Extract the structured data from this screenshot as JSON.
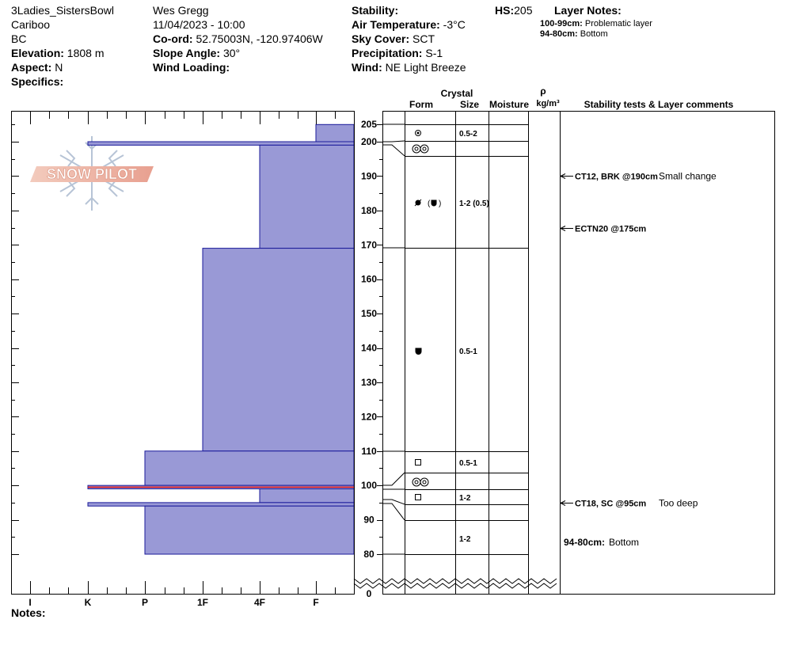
{
  "header": {
    "col1": {
      "location": "3Ladies_SistersBowl",
      "region": "Cariboo",
      "state": "BC",
      "elevation_label": "Elevation:",
      "elevation_value": "1808 m",
      "aspect_label": "Aspect:",
      "aspect_value": "N",
      "specifics_label": "Specifics:"
    },
    "col2": {
      "observer": "Wes Gregg",
      "datetime": "11/04/2023 - 10:00",
      "coord_label": "Co-ord:",
      "coord_value": "52.75003N, -120.97406W",
      "slope_label": "Slope Angle:",
      "slope_value": "30°",
      "wind_loading_label": "Wind Loading:"
    },
    "col3": {
      "stability_label": "Stability:",
      "air_temp_label": "Air Temperature:",
      "air_temp_value": "-3°C",
      "sky_label": "Sky Cover:",
      "sky_value": "SCT",
      "precip_label": "Precipitation:",
      "precip_value": "S-1",
      "wind_label": "Wind:",
      "wind_value": "NE Light Breeze"
    },
    "hs_label": "HS:",
    "hs_value": "205",
    "layer_notes_title": "Layer Notes:",
    "layer_notes": [
      {
        "range": "100-99cm:",
        "text": "Problematic layer"
      },
      {
        "range": "94-80cm:",
        "text": "Bottom"
      }
    ]
  },
  "columns": {
    "crystal": "Crystal",
    "form": "Form",
    "size": "Size",
    "moisture": "Moisture",
    "rho": "ρ",
    "density_unit": "kg/m³",
    "tests": "Stability tests & Layer comments"
  },
  "hardness_axis": [
    "I",
    "K",
    "P",
    "1F",
    "4F",
    "F"
  ],
  "depth_ticks": [
    205,
    200,
    190,
    180,
    170,
    160,
    150,
    140,
    130,
    120,
    110,
    100,
    90,
    80,
    0
  ],
  "logo_text": "SNOW PILOT",
  "notes_label": "Notes:",
  "colors": {
    "layer_fill": "#9999d6",
    "layer_stroke": "#1a1a9a",
    "problem_line": "#e01010",
    "logo": "#e8a090"
  },
  "chart_data": {
    "type": "snow_profile",
    "hs_cm": 205,
    "hardness_scale": [
      "F",
      "4F",
      "1F",
      "P",
      "K",
      "I"
    ],
    "layers": [
      {
        "top": 205,
        "bottom": 200,
        "hardness": "F"
      },
      {
        "top": 200,
        "bottom": 199,
        "hardness": "K"
      },
      {
        "top": 199,
        "bottom": 169,
        "hardness": "4F"
      },
      {
        "top": 169,
        "bottom": 110,
        "hardness": "1F"
      },
      {
        "top": 110,
        "bottom": 100,
        "hardness": "P"
      },
      {
        "top": 100,
        "bottom": 99,
        "hardness": "K",
        "problematic": true
      },
      {
        "top": 99,
        "bottom": 95,
        "hardness": "4F"
      },
      {
        "top": 95,
        "bottom": 94,
        "hardness": "K"
      },
      {
        "top": 94,
        "bottom": 80,
        "hardness": "P"
      }
    ],
    "crystal_layers": [
      {
        "top": 205,
        "bottom": 200,
        "form": "rounded-grains",
        "size": "0.5-2"
      },
      {
        "top": 200,
        "bottom": 196,
        "form": "melt-forms",
        "size": ""
      },
      {
        "top": 196,
        "bottom": 169,
        "form": "decomposing-faceted",
        "size": "1-2 (0.5)"
      },
      {
        "top": 169,
        "bottom": 110,
        "form": "faceted-rounded",
        "size": "0.5-1"
      },
      {
        "top": 110,
        "bottom": 104,
        "form": "faceted",
        "size": "0.5-1"
      },
      {
        "top": 104,
        "bottom": 99,
        "form": "melt-forms",
        "size": ""
      },
      {
        "top": 99,
        "bottom": 95,
        "form": "faceted",
        "size": "1-2"
      },
      {
        "top": 95,
        "bottom": 90,
        "form": "",
        "size": ""
      },
      {
        "top": 90,
        "bottom": 80,
        "form": "",
        "size": "1-2"
      }
    ],
    "tests": [
      {
        "depth": 190,
        "label": "CT12, BRK @190cm",
        "comment": "Small change"
      },
      {
        "depth": 175,
        "label": "ECTN20 @175cm",
        "comment": ""
      },
      {
        "depth": 95,
        "label": "CT18, SC @95cm",
        "comment": "Too deep"
      }
    ],
    "bottom_note": {
      "label": "94-80cm:",
      "text": "Bottom"
    }
  }
}
